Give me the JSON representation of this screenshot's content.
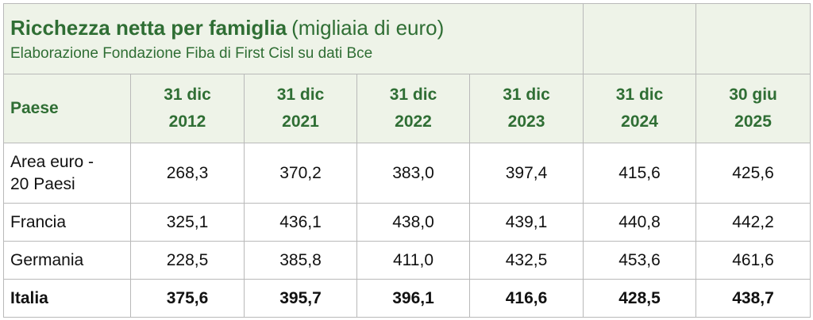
{
  "header": {
    "title": "Ricchezza netta per famiglia",
    "title_unit": "(migliaia di euro)",
    "subtitle": "Elaborazione Fondazione Fiba di First Cisl su dati Bce"
  },
  "table": {
    "columns": [
      "Paese",
      "31 dic 2012",
      "31 dic 2021",
      "31 dic 2022",
      "31 dic 2023",
      "31 dic 2024",
      "30 giu 2025"
    ],
    "rows": [
      [
        "Area euro - 20 Paesi",
        "268,3",
        "370,2",
        "383,0",
        "397,4",
        "415,6",
        "425,6"
      ],
      [
        "Francia",
        "325,1",
        "436,1",
        "438,0",
        "439,1",
        "440,8",
        "442,2"
      ],
      [
        "Germania",
        "228,5",
        "385,8",
        "411,0",
        "432,5",
        "453,6",
        "461,6"
      ],
      [
        "Italia",
        "375,6",
        "395,7",
        "396,1",
        "416,6",
        "428,5",
        "438,7"
      ]
    ]
  }
}
